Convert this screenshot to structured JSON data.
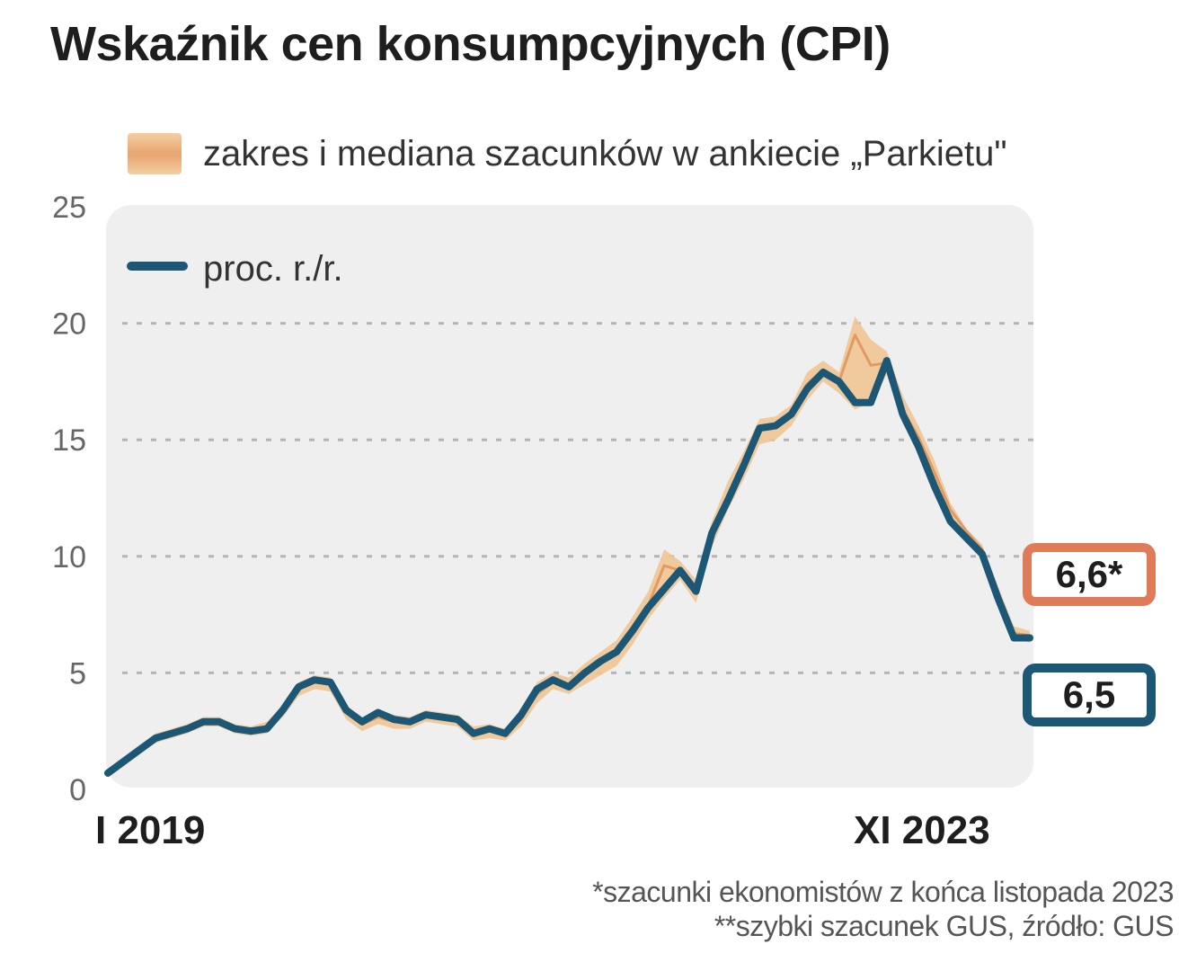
{
  "title": "Wskaźnik cen konsumpcyjnych (CPI)",
  "legend": {
    "band": "zakres i mediana szacunków w ankiecie „Parkietu\"",
    "line": "proc. r./r."
  },
  "callouts": {
    "estimate": "6,6*",
    "actual": "6,5"
  },
  "footnotes": [
    "*szacunki ekonomistów z końca listopada 2023",
    "**szybki szacunek GUS, źródło: GUS"
  ],
  "colors": {
    "line": "#1c5775",
    "band": "#efc593",
    "median": "#e29a62",
    "estimate_border": "#e07b5a",
    "plot_bg": "#efefef",
    "grid": "#b5b5b5"
  },
  "chart_data": {
    "type": "line",
    "title": "Wskaźnik cen konsumpcyjnych (CPI)",
    "ylabel": "proc. r./r.",
    "ylim": [
      0,
      25
    ],
    "yticks": [
      0,
      5,
      10,
      15,
      20,
      25
    ],
    "x_start_label": "I 2019",
    "x_end_label": "XI 2023",
    "grid": true,
    "series": [
      {
        "name": "proc. r./r.",
        "values": [
          0.7,
          1.2,
          1.7,
          2.2,
          2.4,
          2.6,
          2.9,
          2.9,
          2.6,
          2.5,
          2.6,
          3.4,
          4.4,
          4.7,
          4.6,
          3.4,
          2.9,
          3.3,
          3.0,
          2.9,
          3.2,
          3.1,
          3.0,
          2.4,
          2.6,
          2.4,
          3.2,
          4.3,
          4.7,
          4.4,
          5.0,
          5.5,
          5.9,
          6.8,
          7.8,
          8.6,
          9.4,
          8.5,
          11.0,
          12.4,
          13.9,
          15.5,
          15.6,
          16.1,
          17.2,
          17.9,
          17.5,
          16.6,
          16.6,
          18.4,
          16.1,
          14.7,
          13.0,
          11.5,
          10.8,
          10.1,
          8.2,
          6.5,
          6.5
        ]
      }
    ],
    "estimate_band": {
      "name": "zakres i mediana szacunków w ankiecie „Parkietu\"",
      "low": [
        0.5,
        1.0,
        1.5,
        2.0,
        2.2,
        2.4,
        2.7,
        2.7,
        2.4,
        2.3,
        2.4,
        3.1,
        4.0,
        4.3,
        4.2,
        3.0,
        2.5,
        2.8,
        2.6,
        2.6,
        2.9,
        2.8,
        2.7,
        2.1,
        2.2,
        2.1,
        2.7,
        3.7,
        4.3,
        4.1,
        4.5,
        4.9,
        5.3,
        6.2,
        7.3,
        8.2,
        9.0,
        8.0,
        10.4,
        12.0,
        13.3,
        14.8,
        15.0,
        15.6,
        16.7,
        17.5,
        17.0,
        16.3,
        16.6,
        17.8,
        15.7,
        14.5,
        13.0,
        11.6,
        10.9,
        10.1,
        8.2,
        6.5,
        6.3
      ],
      "high": [
        0.9,
        1.4,
        1.9,
        2.4,
        2.6,
        2.8,
        3.1,
        3.1,
        2.8,
        2.7,
        2.9,
        3.6,
        4.6,
        4.9,
        4.8,
        3.6,
        3.1,
        3.4,
        3.2,
        3.1,
        3.4,
        3.3,
        3.2,
        2.7,
        2.8,
        2.6,
        3.4,
        4.6,
        5.0,
        4.8,
        5.4,
        5.9,
        6.4,
        7.4,
        8.5,
        10.3,
        9.8,
        9.0,
        11.5,
        13.2,
        14.5,
        15.9,
        16.0,
        16.5,
        17.9,
        18.4,
        17.9,
        20.3,
        19.3,
        18.8,
        16.9,
        15.6,
        14.1,
        12.3,
        11.2,
        10.5,
        8.7,
        7.0,
        6.8
      ],
      "median": [
        0.7,
        1.2,
        1.7,
        2.2,
        2.4,
        2.6,
        2.9,
        2.9,
        2.6,
        2.5,
        2.7,
        3.4,
        4.3,
        4.6,
        4.5,
        3.3,
        2.8,
        3.1,
        2.9,
        2.9,
        3.2,
        3.1,
        3.0,
        2.4,
        2.5,
        2.4,
        3.0,
        4.1,
        4.6,
        4.4,
        4.9,
        5.4,
        5.9,
        6.8,
        7.9,
        9.6,
        9.4,
        8.5,
        11.0,
        12.6,
        13.9,
        15.4,
        15.5,
        16.1,
        17.4,
        18.0,
        17.5,
        19.5,
        18.2,
        18.3,
        16.3,
        15.1,
        13.6,
        12.0,
        11.1,
        10.3,
        8.5,
        6.7,
        6.6
      ]
    },
    "last_values": {
      "estimate": 6.6,
      "actual": 6.5
    }
  }
}
